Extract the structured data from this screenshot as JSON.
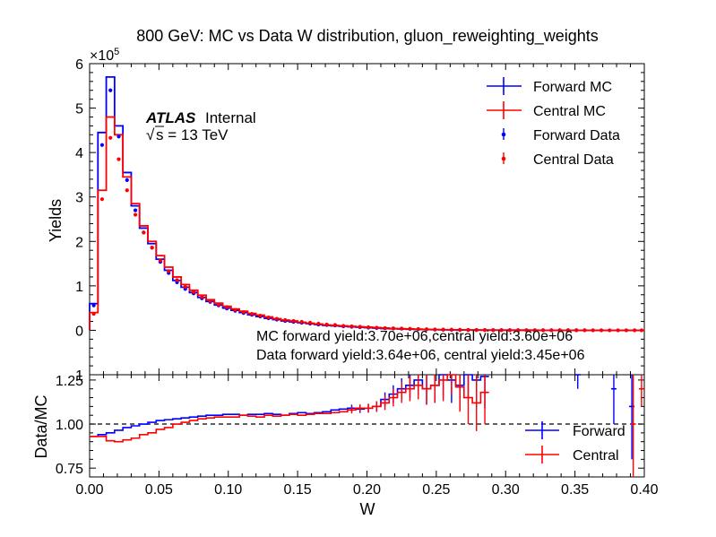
{
  "chart_data": {
    "type": "line",
    "title": "800 GeV: MC vs Data W distribution, gluon_reweighting_weights",
    "xlabel": "W",
    "xlim": [
      0.0,
      0.4
    ],
    "xticks": [
      "0.00",
      "0.05",
      "0.10",
      "0.15",
      "0.20",
      "0.25",
      "0.30",
      "0.35",
      "0.40"
    ],
    "main": {
      "ylabel": "Yields",
      "ylim": [
        -1,
        6
      ],
      "scale_label": "×10",
      "scale_exponent": "5",
      "yticks": [
        "0",
        "1",
        "2",
        "3",
        "4",
        "5",
        "6"
      ],
      "ytick_values": [
        0,
        1,
        2,
        3,
        4,
        5,
        6
      ],
      "bottom_tick_label": "1",
      "bin_edges": [
        0.0,
        0.006,
        0.012,
        0.018,
        0.024,
        0.03,
        0.036,
        0.042,
        0.048,
        0.054,
        0.06,
        0.066,
        0.072,
        0.078,
        0.084,
        0.09,
        0.096,
        0.102,
        0.108,
        0.114,
        0.12,
        0.126,
        0.132,
        0.138,
        0.144,
        0.15,
        0.156,
        0.162,
        0.168,
        0.174,
        0.18,
        0.186,
        0.192,
        0.198,
        0.204,
        0.21,
        0.216,
        0.222,
        0.228,
        0.234,
        0.24,
        0.246,
        0.252,
        0.258,
        0.264,
        0.27,
        0.276,
        0.282,
        0.288,
        0.294,
        0.3,
        0.306,
        0.312,
        0.318,
        0.324,
        0.33,
        0.336,
        0.342,
        0.348,
        0.354,
        0.36,
        0.366,
        0.372,
        0.378,
        0.384,
        0.39,
        0.396,
        0.4
      ],
      "series": [
        {
          "name": "Forward MC",
          "kind": "step",
          "color": "#0000ff",
          "values": [
            0.6,
            4.45,
            5.7,
            4.6,
            3.55,
            2.8,
            2.3,
            1.95,
            1.6,
            1.35,
            1.12,
            0.97,
            0.85,
            0.74,
            0.65,
            0.57,
            0.5,
            0.45,
            0.4,
            0.35,
            0.31,
            0.27,
            0.24,
            0.21,
            0.19,
            0.17,
            0.15,
            0.13,
            0.11,
            0.1,
            0.09,
            0.08,
            0.07,
            0.06,
            0.05,
            0.04,
            0.035,
            0.03,
            0.025,
            0.02,
            0.016,
            0.013,
            0.011,
            0.009,
            0.007,
            0.006,
            0.005,
            0.004,
            0.003,
            0.003,
            0.002,
            0.002,
            0.002,
            0.001,
            0.001,
            0.001,
            0.001,
            0.001,
            0.001,
            0.0,
            0.0,
            0.0,
            0.0,
            0.0,
            0.0,
            0.0,
            0.0
          ]
        },
        {
          "name": "Central MC",
          "kind": "step",
          "color": "#ff0000",
          "values": [
            0.4,
            3.15,
            4.8,
            4.4,
            3.45,
            2.85,
            2.35,
            2.0,
            1.68,
            1.42,
            1.2,
            1.03,
            0.9,
            0.79,
            0.69,
            0.61,
            0.54,
            0.48,
            0.43,
            0.38,
            0.34,
            0.3,
            0.26,
            0.23,
            0.21,
            0.18,
            0.16,
            0.14,
            0.12,
            0.11,
            0.1,
            0.09,
            0.08,
            0.07,
            0.06,
            0.05,
            0.04,
            0.035,
            0.03,
            0.025,
            0.02,
            0.016,
            0.013,
            0.011,
            0.009,
            0.007,
            0.006,
            0.005,
            0.004,
            0.003,
            0.003,
            0.002,
            0.002,
            0.002,
            0.001,
            0.001,
            0.001,
            0.001,
            0.001,
            0.0,
            0.0,
            0.0,
            0.0,
            0.0,
            0.0,
            0.0,
            0.0
          ]
        },
        {
          "name": "Forward Data",
          "kind": "points",
          "color": "#0000ff",
          "values": [
            0.56,
            4.17,
            5.4,
            4.36,
            3.38,
            2.7,
            2.2,
            1.86,
            1.54,
            1.29,
            1.08,
            0.93,
            0.83,
            0.72,
            0.64,
            0.56,
            0.49,
            0.44,
            0.39,
            0.35,
            0.31,
            0.27,
            0.24,
            0.21,
            0.19,
            0.17,
            0.15,
            0.13,
            0.12,
            0.11,
            0.09,
            0.08,
            0.07,
            0.06,
            0.05,
            0.045,
            0.04,
            0.035,
            0.03,
            0.025,
            0.02,
            0.016,
            0.013,
            0.011,
            0.009,
            0.007,
            0.006,
            0.005,
            0.004,
            0.003,
            0.003,
            0.002,
            0.002,
            0.002,
            0.001,
            0.001,
            0.001,
            0.001,
            0.001,
            0.001,
            0.0,
            0.0,
            0.0,
            0.0,
            0.0,
            0.0,
            0.0
          ]
        },
        {
          "name": "Central Data",
          "kind": "points",
          "color": "#ff0000",
          "values": [
            0.37,
            2.95,
            4.33,
            3.85,
            3.15,
            2.6,
            2.2,
            1.86,
            1.57,
            1.33,
            1.13,
            0.98,
            0.86,
            0.75,
            0.66,
            0.58,
            0.52,
            0.46,
            0.41,
            0.37,
            0.33,
            0.29,
            0.26,
            0.23,
            0.21,
            0.19,
            0.17,
            0.15,
            0.13,
            0.12,
            0.1,
            0.09,
            0.08,
            0.07,
            0.06,
            0.05,
            0.045,
            0.04,
            0.035,
            0.03,
            0.025,
            0.02,
            0.016,
            0.013,
            0.011,
            0.009,
            0.007,
            0.006,
            0.005,
            0.004,
            0.003,
            0.003,
            0.002,
            0.002,
            0.001,
            0.001,
            0.001,
            0.001,
            0.001,
            0.0,
            0.0,
            0.0,
            0.0,
            0.0,
            0.0,
            0.0,
            0.0
          ]
        }
      ],
      "legend": {
        "location": "top-right",
        "entries": [
          "Forward MC",
          "Central MC",
          "Forward Data",
          "Central Data"
        ]
      },
      "annotations": {
        "atlas_label": "ATLAS",
        "atlas_status": "Internal",
        "sqrt_symbol": "√",
        "energy_label": "s = 13 TeV",
        "mc_yield_text": "MC forward yield:3.70e+06,central yield:3.60e+06",
        "data_yield_text": "Data forward yield:3.64e+06, central yield:3.45e+06"
      }
    },
    "ratio": {
      "ylabel": "Data/MC",
      "ylim": [
        0.7,
        1.28
      ],
      "yticks": [
        "0.75",
        "1.00",
        "1.25"
      ],
      "ytick_values": [
        0.75,
        1.0,
        1.25
      ],
      "reference_line": 1.0,
      "bin_edges": [
        0.0,
        0.006,
        0.012,
        0.018,
        0.024,
        0.03,
        0.036,
        0.042,
        0.048,
        0.054,
        0.06,
        0.066,
        0.072,
        0.078,
        0.084,
        0.09,
        0.096,
        0.102,
        0.108,
        0.114,
        0.12,
        0.126,
        0.132,
        0.138,
        0.144,
        0.15,
        0.156,
        0.162,
        0.168,
        0.174,
        0.18,
        0.186,
        0.192,
        0.198,
        0.204,
        0.21,
        0.216,
        0.222,
        0.228,
        0.234,
        0.24,
        0.246,
        0.252,
        0.258,
        0.264,
        0.27,
        0.276,
        0.282,
        0.288
      ],
      "series": [
        {
          "name": "Forward",
          "color": "#0000ff",
          "values": [
            0.93,
            0.94,
            0.95,
            0.965,
            0.98,
            0.99,
            1.0,
            1.01,
            1.02,
            1.025,
            1.03,
            1.035,
            1.04,
            1.045,
            1.05,
            1.05,
            1.055,
            1.055,
            1.05,
            1.055,
            1.055,
            1.06,
            1.055,
            1.05,
            1.06,
            1.065,
            1.06,
            1.065,
            1.07,
            1.08,
            1.085,
            1.09,
            1.085,
            1.09,
            1.1,
            1.14,
            1.17,
            1.2,
            1.22,
            1.25,
            1.2,
            1.22,
            1.28,
            1.25,
            1.22,
            1.3,
            1.25,
            1.27
          ],
          "errors": [
            0.005,
            0.005,
            0.005,
            0.005,
            0.005,
            0.005,
            0.005,
            0.005,
            0.005,
            0.005,
            0.005,
            0.005,
            0.005,
            0.005,
            0.005,
            0.005,
            0.005,
            0.006,
            0.006,
            0.006,
            0.007,
            0.007,
            0.008,
            0.008,
            0.009,
            0.01,
            0.011,
            0.012,
            0.013,
            0.015,
            0.017,
            0.02,
            0.022,
            0.025,
            0.03,
            0.04,
            0.05,
            0.06,
            0.07,
            0.08,
            0.09,
            0.1,
            0.12,
            0.13,
            0.14,
            0.15,
            0.16,
            0.18
          ],
          "extra_points": [
            {
              "x": 0.352,
              "y": 1.3,
              "err": 0.1
            },
            {
              "x": 0.378,
              "y": 1.2,
              "err": 0.2
            },
            {
              "x": 0.391,
              "y": 1.1,
              "err": 0.3
            }
          ]
        },
        {
          "name": "Central",
          "color": "#ff0000",
          "values": [
            0.93,
            0.93,
            0.905,
            0.9,
            0.91,
            0.92,
            0.94,
            0.95,
            0.97,
            0.98,
            1.0,
            1.01,
            1.02,
            1.03,
            1.035,
            1.04,
            1.04,
            1.04,
            1.05,
            1.045,
            1.04,
            1.05,
            1.045,
            1.05,
            1.055,
            1.05,
            1.055,
            1.06,
            1.06,
            1.065,
            1.07,
            1.08,
            1.09,
            1.09,
            1.1,
            1.12,
            1.15,
            1.18,
            1.2,
            1.22,
            1.2,
            1.22,
            1.25,
            1.3,
            1.21,
            1.15,
            1.12,
            1.18
          ],
          "errors": [
            0.005,
            0.005,
            0.005,
            0.005,
            0.005,
            0.005,
            0.005,
            0.005,
            0.005,
            0.005,
            0.005,
            0.005,
            0.005,
            0.005,
            0.005,
            0.005,
            0.005,
            0.006,
            0.006,
            0.006,
            0.007,
            0.007,
            0.008,
            0.008,
            0.009,
            0.01,
            0.011,
            0.012,
            0.013,
            0.015,
            0.017,
            0.02,
            0.022,
            0.025,
            0.03,
            0.04,
            0.05,
            0.06,
            0.07,
            0.08,
            0.09,
            0.1,
            0.12,
            0.13,
            0.14,
            0.15,
            0.16,
            0.18
          ],
          "extra_points": [
            {
              "x": 0.392,
              "y": 1.0,
              "err": 0.3
            },
            {
              "x": 0.398,
              "y": 1.2,
              "err": 0.1
            }
          ]
        }
      ],
      "legend": {
        "location": "bottom-right",
        "entries": [
          "Forward",
          "Central"
        ]
      }
    }
  }
}
